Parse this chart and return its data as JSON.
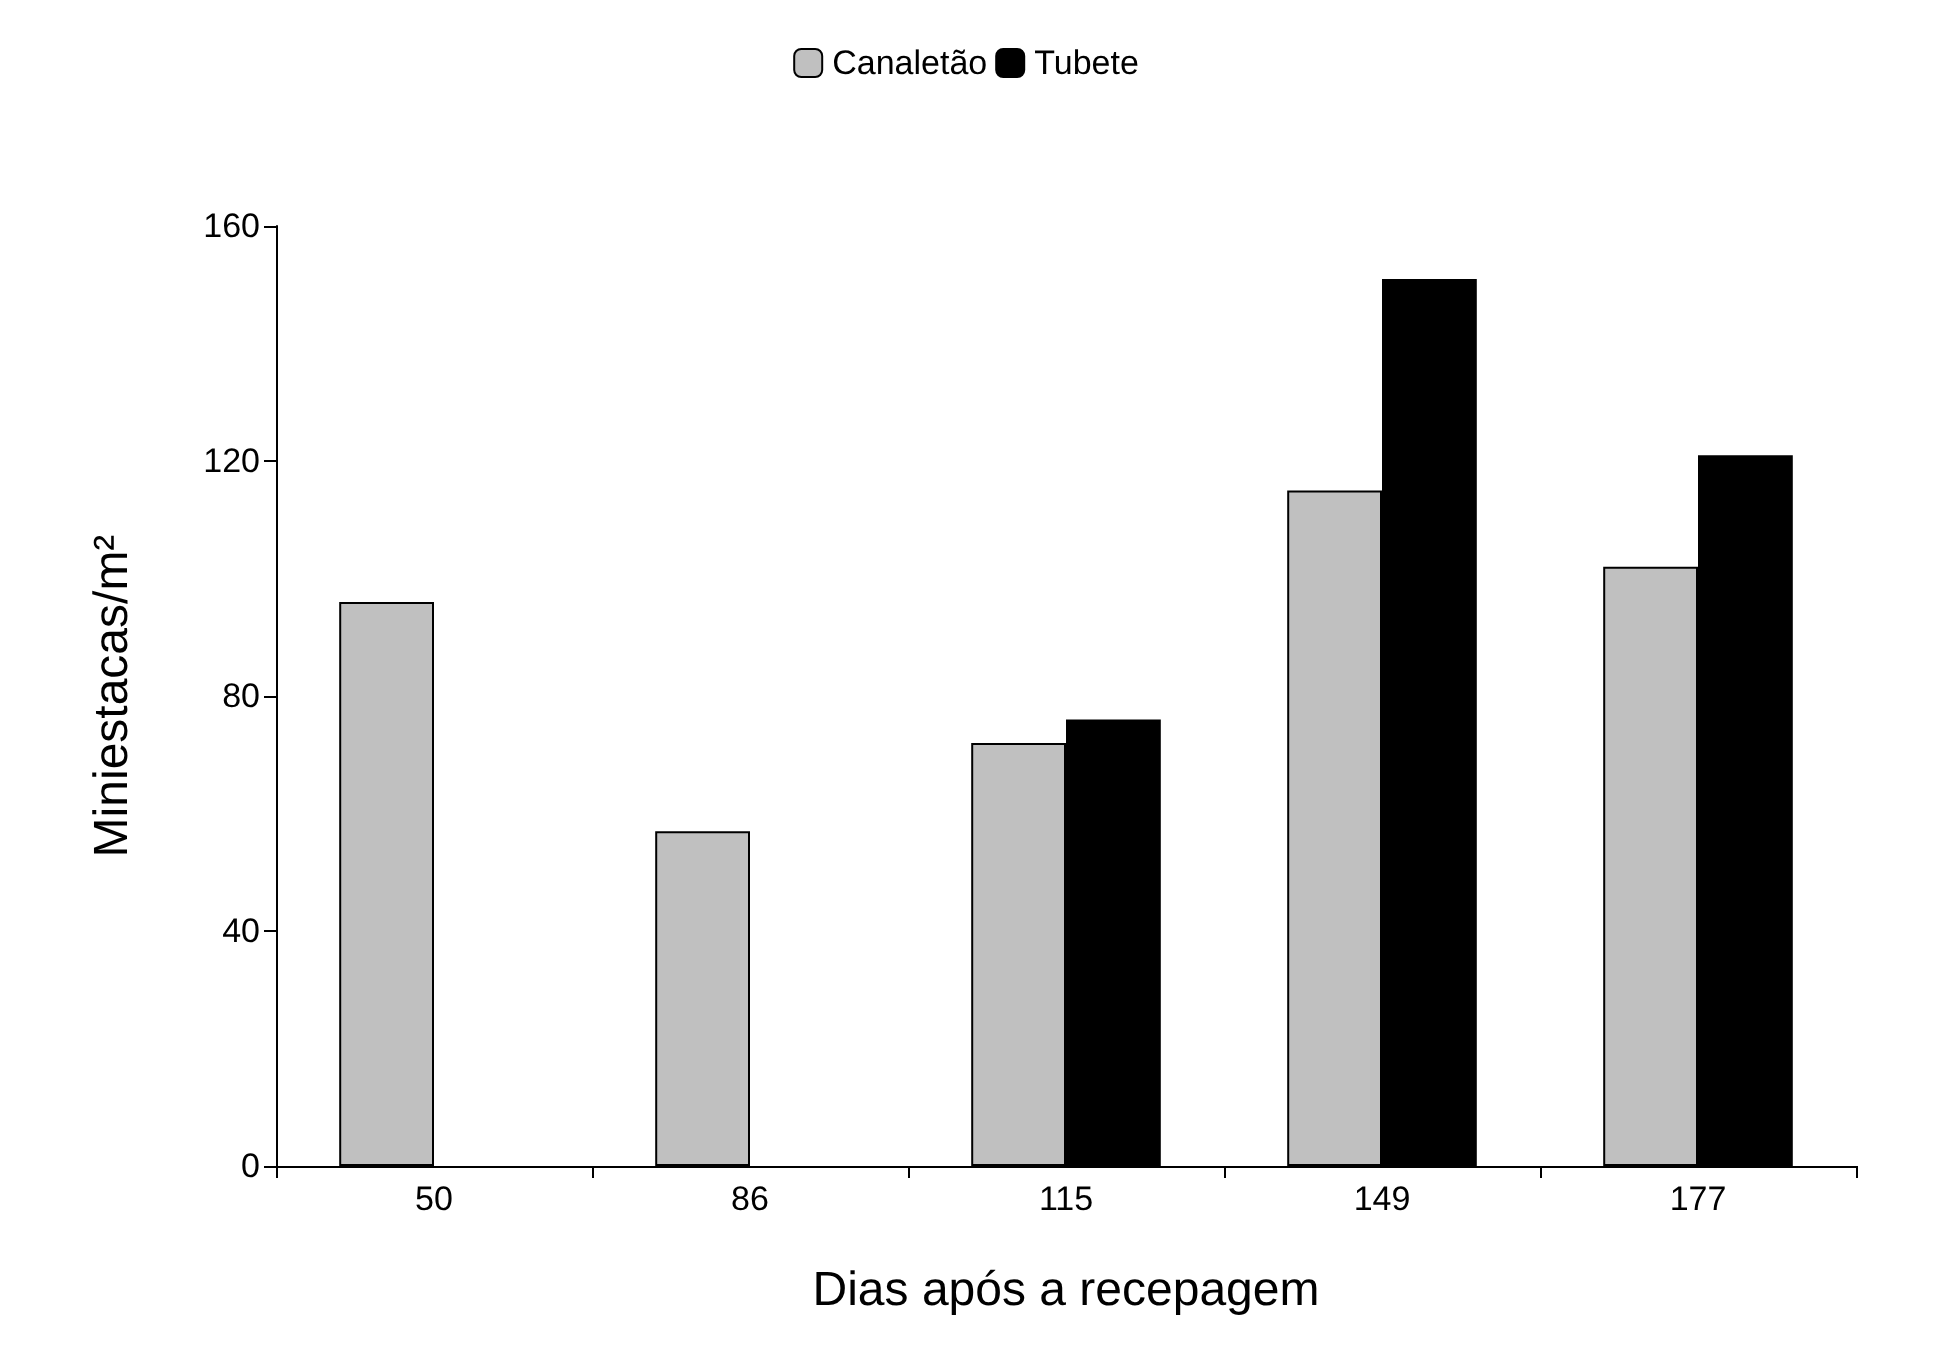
{
  "chart_data": {
    "type": "bar",
    "xlabel": "Dias após a recepagem",
    "ylabel": "Miniestacas/m²",
    "categories": [
      "50",
      "86",
      "115",
      "149",
      "177"
    ],
    "series": [
      {
        "name": "Canaletão",
        "color": "#c0c0c0",
        "values": [
          96,
          57,
          72,
          115,
          102
        ]
      },
      {
        "name": "Tubete",
        "color": "#000000",
        "values": [
          null,
          null,
          76,
          151,
          121
        ]
      }
    ],
    "ylim": [
      0,
      160
    ],
    "yticks": [
      0,
      40,
      80,
      120,
      160
    ],
    "grid": false,
    "legend": "top"
  }
}
